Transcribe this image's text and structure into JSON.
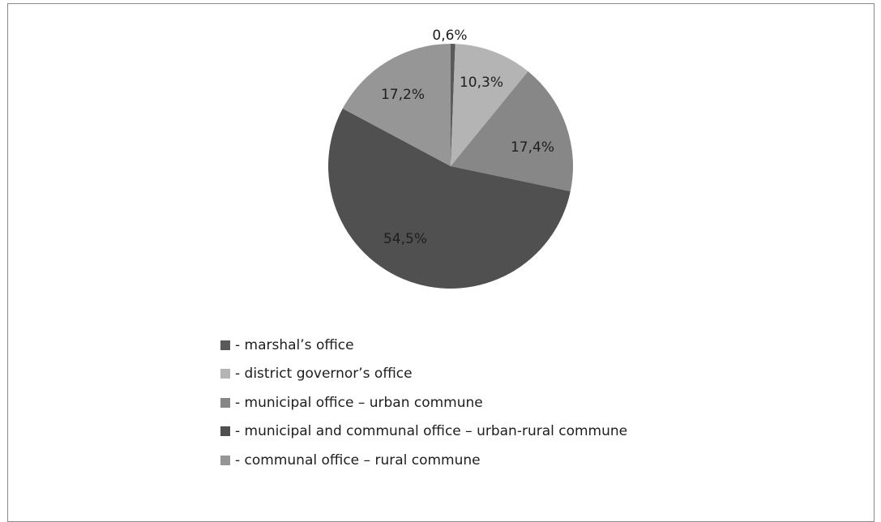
{
  "chart_data": {
    "type": "pie",
    "slices": [
      {
        "label": "- marshal’s office",
        "value": 0.6,
        "value_label": "0,6%",
        "color": "#5a5a5a"
      },
      {
        "label": "- district governor’s office",
        "value": 10.3,
        "value_label": "10,3%",
        "color": "#b4b4b4"
      },
      {
        "label": "- municipal office – urban commune",
        "value": 17.4,
        "value_label": "17,4%",
        "color": "#878787"
      },
      {
        "label": "- municipal and communal office – urban-rural commune",
        "value": 54.5,
        "value_label": "54,5%",
        "color": "#505050"
      },
      {
        "label": "- communal office – rural commune",
        "value": 17.2,
        "value_label": "17,2%",
        "color": "#969696"
      }
    ],
    "start_angle_deg": 0,
    "direction": "clockwise",
    "legend_position": "bottom"
  }
}
